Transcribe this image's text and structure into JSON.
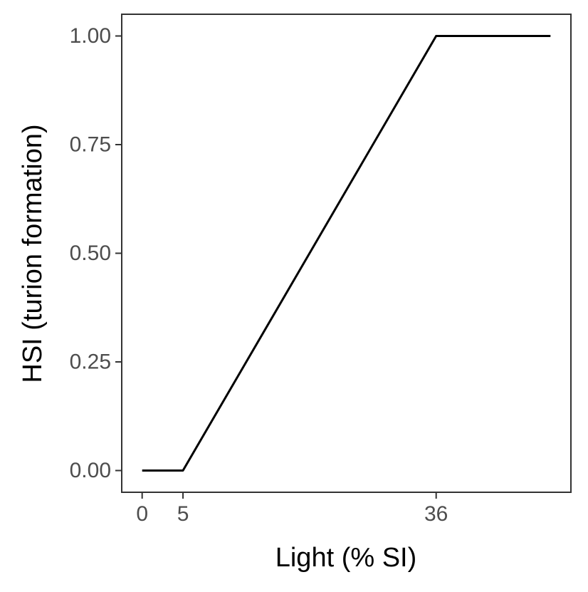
{
  "chart_data": {
    "type": "line",
    "xlabel": "Light (% SI)",
    "ylabel": "HSI (turion formation)",
    "x_ticks": [
      "0",
      "5",
      "36"
    ],
    "x_tick_values": [
      0,
      5,
      36
    ],
    "y_ticks": [
      "0.00",
      "0.25",
      "0.50",
      "0.75",
      "1.00"
    ],
    "y_tick_values": [
      0,
      0.25,
      0.5,
      0.75,
      1
    ],
    "xlim": [
      -2.5,
      52.5
    ],
    "ylim": [
      -0.05,
      1.05
    ],
    "grid": false,
    "series": [
      {
        "x": [
          0,
          5,
          36,
          50
        ],
        "y": [
          0,
          0,
          1,
          1
        ],
        "color": "#000000"
      }
    ]
  }
}
